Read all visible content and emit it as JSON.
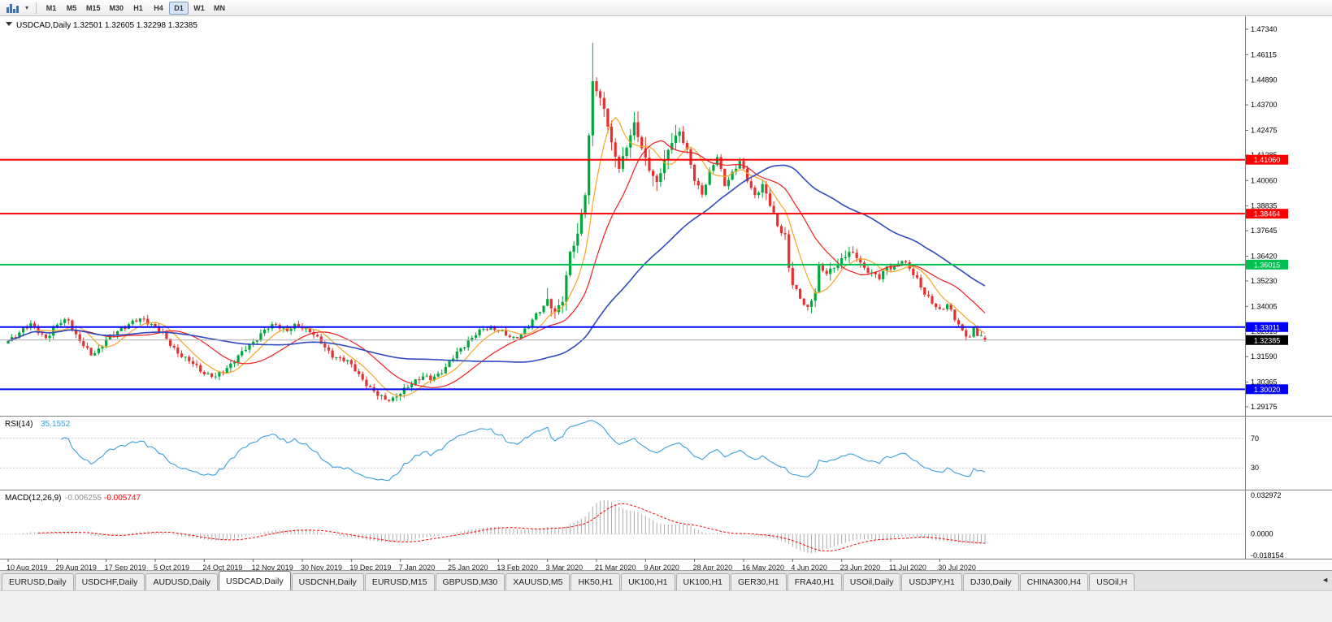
{
  "toolbar": {
    "timeframes": [
      "M1",
      "M5",
      "M15",
      "M30",
      "H1",
      "H4",
      "D1",
      "W1",
      "MN"
    ],
    "active": "D1"
  },
  "chart": {
    "symbol_period": "USDCAD,Daily",
    "quote": {
      "open": "1.32501",
      "high": "1.32605",
      "low": "1.32298",
      "close": "1.32385"
    },
    "price_axis_labels": [
      "1.47340",
      "1.46115",
      "1.44890",
      "1.43700",
      "1.42475",
      "1.41285",
      "1.40060",
      "1.38835",
      "1.37645",
      "1.36420",
      "1.35230",
      "1.34005",
      "1.32815",
      "1.31590",
      "1.30365",
      "1.29175"
    ],
    "hlines": [
      {
        "price": 1.4106,
        "label": "1.41060",
        "color": "#FF0000",
        "width": 2,
        "name": "resistance-upper"
      },
      {
        "price": 1.38464,
        "label": "1.38464",
        "color": "#FF0000",
        "width": 2,
        "name": "resistance-lower"
      },
      {
        "price": 1.36015,
        "label": "1.36015",
        "color": "#00C050",
        "width": 2,
        "name": "pivot-green"
      },
      {
        "price": 1.33011,
        "label": "1.33011",
        "color": "#0000FF",
        "width": 2,
        "name": "support-upper"
      },
      {
        "price": 1.3002,
        "label": "1.30020",
        "color": "#0000FF",
        "width": 2,
        "name": "support-lower"
      }
    ],
    "bid": {
      "price": 1.32385,
      "label": "1.32385"
    },
    "date_labels": [
      "10 Aug 2019",
      "29 Aug 2019",
      "17 Sep 2019",
      "5 Oct 2019",
      "24 Oct 2019",
      "12 Nov 2019",
      "30 Nov 2019",
      "19 Dec 2019",
      "7 Jan 2020",
      "25 Jan 2020",
      "13 Feb 2020",
      "3 Mar 2020",
      "21 Mar 2020",
      "9 Apr 2020",
      "28 Apr 2020",
      "16 May 2020",
      "4 Jun 2020",
      "23 Jun 2020",
      "11 Jul 2020",
      "30 Jul 2020"
    ]
  },
  "rsi": {
    "title": "RSI(14)",
    "value": "35.1552",
    "levels": [
      70,
      30
    ],
    "level_labels": [
      "70",
      "30"
    ]
  },
  "macd": {
    "title": "MACD(12,26,9)",
    "main_value": "-0.006255",
    "signal_value": "-0.005747",
    "axis_labels": [
      "0.032972",
      "0.0000",
      "-0.018154"
    ],
    "range": [
      -0.018154,
      0.032972
    ]
  },
  "tabs": {
    "items": [
      "EURUSD,Daily",
      "USDCHF,Daily",
      "AUDUSD,Daily",
      "USDCAD,Daily",
      "USDCNH,Daily",
      "EURUSD,M15",
      "GBPUSD,M30",
      "XAUUSD,M5",
      "HK50,H1",
      "UK100,H1",
      "UK100,H1",
      "GER30,H1",
      "FRA40,H1",
      "USOil,Daily",
      "USDJPY,H1",
      "DJ30,Daily",
      "CHINA300,H4",
      "USOil,H"
    ],
    "active_index": 3,
    "scroll_left_arrow": "◄"
  },
  "colors": {
    "bull": "#00A83C",
    "bear": "#E53030",
    "ma_fast": "#F5A623",
    "ma_mid": "#F01E1E",
    "ma_slow": "#2F4BC0",
    "rsi": "#3AA0DC",
    "macd_hist": "#ABABAB",
    "macd_signal": "#FF0000",
    "bid_line": "#AAAAAA",
    "axis_text": "#000000",
    "date_text": "#222222",
    "separator": "#808080",
    "level_line": "#C8C8C8"
  },
  "chart_data": {
    "type": "candlestick",
    "symbol": "USDCAD",
    "period": "Daily",
    "n_candles": 260,
    "price_range": [
      1.289,
      1.4765
    ],
    "close_anchors": [
      [
        0,
        1.3228
      ],
      [
        2,
        1.3262
      ],
      [
        4,
        1.3296
      ],
      [
        6,
        1.331
      ],
      [
        8,
        1.3278
      ],
      [
        10,
        1.3252
      ],
      [
        12,
        1.329
      ],
      [
        14,
        1.3322
      ],
      [
        16,
        1.3338
      ],
      [
        18,
        1.3262
      ],
      [
        20,
        1.3208
      ],
      [
        22,
        1.3168
      ],
      [
        24,
        1.3196
      ],
      [
        26,
        1.3242
      ],
      [
        28,
        1.3262
      ],
      [
        30,
        1.3296
      ],
      [
        33,
        1.3326
      ],
      [
        36,
        1.3336
      ],
      [
        39,
        1.3306
      ],
      [
        41,
        1.3262
      ],
      [
        43,
        1.3216
      ],
      [
        45,
        1.3182
      ],
      [
        47,
        1.3148
      ],
      [
        49,
        1.3122
      ],
      [
        52,
        1.3082
      ],
      [
        55,
        1.3058
      ],
      [
        57,
        1.3088
      ],
      [
        59,
        1.3126
      ],
      [
        62,
        1.3176
      ],
      [
        65,
        1.3232
      ],
      [
        68,
        1.3286
      ],
      [
        71,
        1.3312
      ],
      [
        74,
        1.3288
      ],
      [
        76,
        1.3302
      ],
      [
        78,
        1.3296
      ],
      [
        80,
        1.3288
      ],
      [
        82,
        1.3246
      ],
      [
        84,
        1.3198
      ],
      [
        86,
        1.3166
      ],
      [
        88,
        1.3152
      ],
      [
        90,
        1.3132
      ],
      [
        92,
        1.3096
      ],
      [
        94,
        1.3052
      ],
      [
        96,
        1.3002
      ],
      [
        98,
        1.2972
      ],
      [
        100,
        1.2958
      ],
      [
        102,
        1.2956
      ],
      [
        104,
        1.2978
      ],
      [
        106,
        1.3016
      ],
      [
        108,
        1.3048
      ],
      [
        110,
        1.3062
      ],
      [
        112,
        1.3048
      ],
      [
        114,
        1.3076
      ],
      [
        116,
        1.3108
      ],
      [
        118,
        1.3152
      ],
      [
        120,
        1.3196
      ],
      [
        122,
        1.3236
      ],
      [
        124,
        1.3266
      ],
      [
        126,
        1.3288
      ],
      [
        128,
        1.3302
      ],
      [
        130,
        1.3288
      ],
      [
        132,
        1.3258
      ],
      [
        134,
        1.3246
      ],
      [
        136,
        1.3272
      ],
      [
        138,
        1.3306
      ],
      [
        140,
        1.3356
      ],
      [
        142,
        1.3406
      ],
      [
        143,
        1.3436
      ],
      [
        145,
        1.3366
      ],
      [
        147,
        1.3426
      ],
      [
        149,
        1.3666
      ],
      [
        151,
        1.3746
      ],
      [
        153,
        1.3936
      ],
      [
        155,
        1.4486
      ],
      [
        156,
        1.4446
      ],
      [
        158,
        1.4356
      ],
      [
        160,
        1.4176
      ],
      [
        162,
        1.4066
      ],
      [
        164,
        1.4176
      ],
      [
        166,
        1.4276
      ],
      [
        168,
        1.4156
      ],
      [
        170,
        1.4066
      ],
      [
        172,
        1.3996
      ],
      [
        174,
        1.4096
      ],
      [
        176,
        1.4196
      ],
      [
        178,
        1.4246
      ],
      [
        180,
        1.4146
      ],
      [
        182,
        1.4006
      ],
      [
        184,
        1.3946
      ],
      [
        186,
        1.4046
      ],
      [
        188,
        1.4116
      ],
      [
        190,
        1.3986
      ],
      [
        192,
        1.4046
      ],
      [
        194,
        1.4096
      ],
      [
        196,
        1.4006
      ],
      [
        198,
        1.3936
      ],
      [
        200,
        1.3986
      ],
      [
        202,
        1.3886
      ],
      [
        204,
        1.3786
      ],
      [
        206,
        1.3746
      ],
      [
        207,
        1.3586
      ],
      [
        208,
        1.3506
      ],
      [
        210,
        1.3436
      ],
      [
        212,
        1.3396
      ],
      [
        214,
        1.3476
      ],
      [
        215,
        1.3586
      ],
      [
        217,
        1.3556
      ],
      [
        219,
        1.3596
      ],
      [
        221,
        1.3626
      ],
      [
        223,
        1.3656
      ],
      [
        225,
        1.3642
      ],
      [
        227,
        1.3586
      ],
      [
        229,
        1.3556
      ],
      [
        231,
        1.3536
      ],
      [
        233,
        1.3596
      ],
      [
        235,
        1.3586
      ],
      [
        237,
        1.3618
      ],
      [
        239,
        1.3586
      ],
      [
        241,
        1.3536
      ],
      [
        243,
        1.3456
      ],
      [
        245,
        1.3416
      ],
      [
        247,
        1.3386
      ],
      [
        249,
        1.3412
      ],
      [
        251,
        1.3336
      ],
      [
        253,
        1.3282
      ],
      [
        255,
        1.3256
      ],
      [
        256,
        1.3296
      ],
      [
        257,
        1.3262
      ],
      [
        258,
        1.325
      ],
      [
        259,
        1.32385
      ]
    ],
    "wiggle": [
      [
        2.17,
        0.0008,
        0
      ],
      [
        0.9,
        0.0006,
        2
      ]
    ],
    "wick_base": 0.002,
    "wick_zones": [
      [
        143,
        180,
        2.8
      ],
      [
        200,
        226,
        1.6
      ]
    ],
    "spike_high": [
      155,
      1.4668
    ],
    "last_ohlc": [
      1.32501,
      1.32605,
      1.32298,
      1.32385
    ],
    "moving_averages": [
      {
        "period": 8,
        "color_key": "ma_fast"
      },
      {
        "period": 20,
        "color_key": "ma_mid"
      },
      {
        "period": 55,
        "color_key": "ma_slow"
      }
    ],
    "indicators": [
      {
        "type": "RSI",
        "period": 14,
        "current": 35.1552,
        "levels": [
          70,
          30
        ]
      },
      {
        "type": "MACD",
        "fast": 12,
        "slow": 26,
        "signal": 9,
        "current_main": -0.006255,
        "current_signal": -0.005747
      }
    ]
  }
}
